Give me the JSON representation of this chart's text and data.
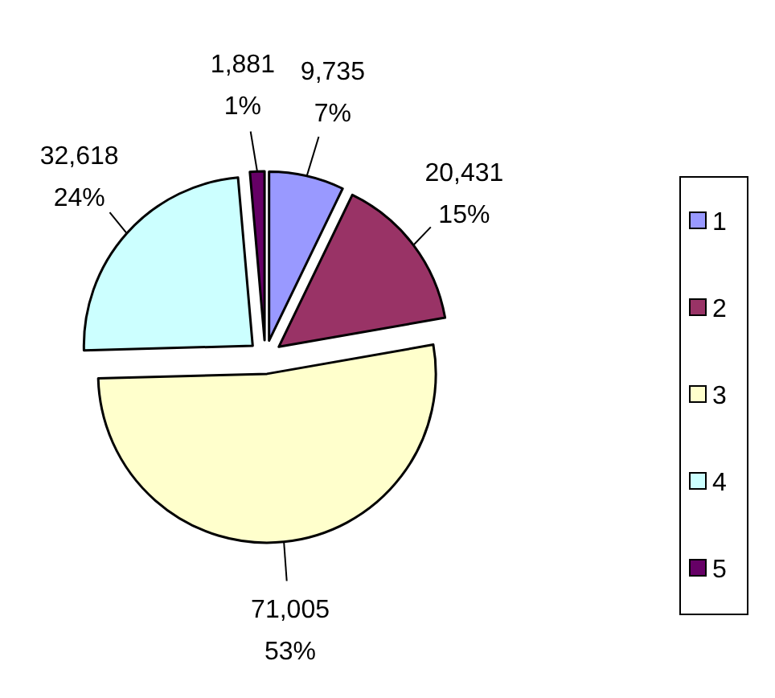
{
  "chart_data": {
    "type": "pie",
    "categories": [
      "1",
      "2",
      "3",
      "4",
      "5"
    ],
    "values": [
      9735,
      20431,
      71005,
      32618,
      1881
    ],
    "colors": [
      "#9999ff",
      "#993366",
      "#ffffcc",
      "#ccffff",
      "#660066"
    ],
    "value_labels": [
      "9,735\n7%",
      "20,431\n15%",
      "71,005\n53%",
      "32,618\n24%",
      "1,881\n1%"
    ],
    "legend": "right"
  }
}
